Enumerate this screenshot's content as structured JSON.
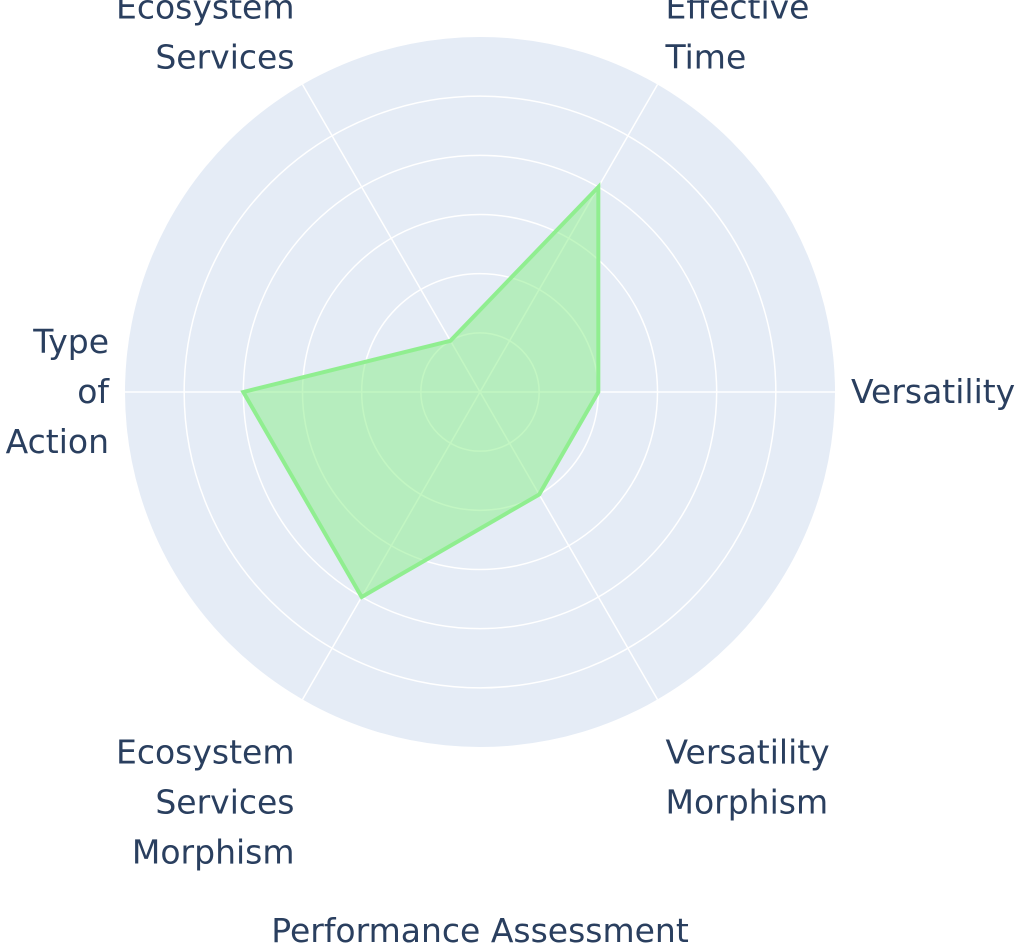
{
  "chart_data": {
    "type": "radar",
    "title": "Performance Assessment",
    "axes": [
      "Versatility",
      "Effective Time",
      "Ecosystem Services",
      "Type of Action",
      "Ecosystem Services Morphism",
      "Versatility Morphism"
    ],
    "axis_label_lines": [
      [
        "Versatility"
      ],
      [
        "Effective",
        "Time"
      ],
      [
        "Ecosystem",
        "Services"
      ],
      [
        "Type",
        "of",
        "Action"
      ],
      [
        "Ecosystem",
        "Services",
        "Morphism"
      ],
      [
        "Versatility",
        "Morphism"
      ]
    ],
    "series": [
      {
        "values": [
          2,
          4,
          1,
          4,
          4,
          2
        ]
      }
    ],
    "rlim": [
      0,
      6
    ],
    "grid": true,
    "radial_tick_labels_shown": false,
    "colors": {
      "background": "#e5ecf6",
      "grid": "#ffffff",
      "fill": "rgba(144,238,144,0.55)",
      "line": "#90ee90",
      "text": "#2a3f5f"
    }
  }
}
